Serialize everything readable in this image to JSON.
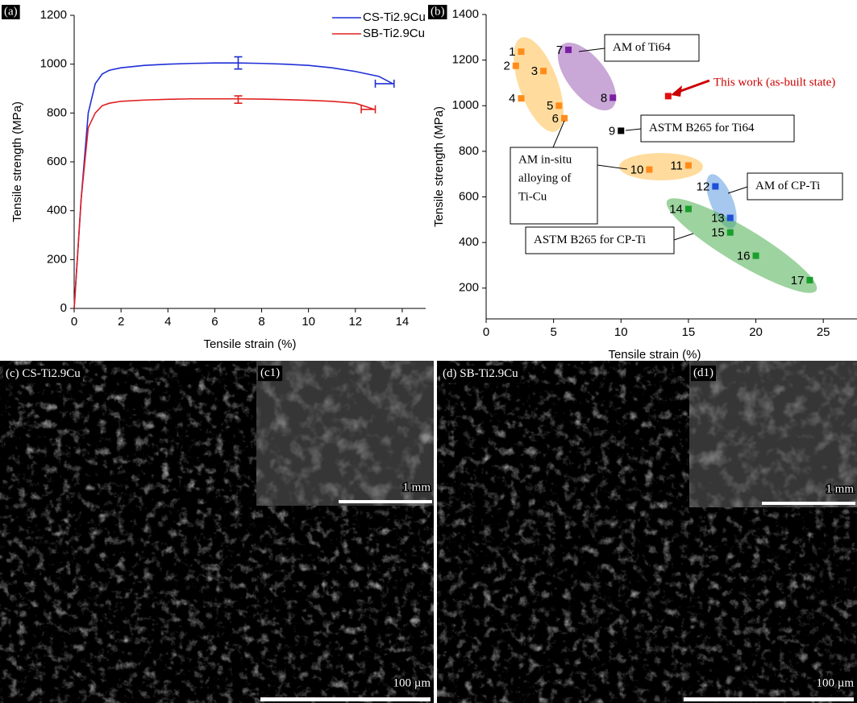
{
  "chart_data": [
    {
      "type": "line",
      "panel_label": "(a)",
      "x_label": "Tensile strain (%)",
      "y_label": "Tensile strength (MPa)",
      "xlim": [
        0,
        15
      ],
      "xticks": [
        0,
        2,
        4,
        6,
        8,
        10,
        12,
        14
      ],
      "ylim": [
        0,
        1200
      ],
      "yticks": [
        0,
        200,
        400,
        600,
        800,
        1000,
        1200
      ],
      "legend": "top-right",
      "series": [
        {
          "name": "CS-Ti2.9Cu",
          "color": "#1f2fd6",
          "x": [
            0,
            0.3,
            0.6,
            0.9,
            1.2,
            1.5,
            2,
            3,
            4,
            5,
            6,
            7,
            8,
            9,
            10,
            11,
            12,
            13,
            13.6
          ],
          "values": [
            0,
            450,
            800,
            920,
            960,
            975,
            985,
            995,
            1000,
            1003,
            1005,
            1005,
            1003,
            1000,
            995,
            985,
            970,
            950,
            920
          ]
        },
        {
          "name": "SB-Ti2.9Cu",
          "color": "#e02020",
          "x": [
            0,
            0.3,
            0.6,
            0.9,
            1.2,
            1.5,
            2,
            3,
            4,
            5,
            6,
            7,
            8,
            9,
            10,
            11,
            12,
            12.8
          ],
          "values": [
            0,
            450,
            740,
            800,
            830,
            840,
            848,
            853,
            856,
            858,
            858,
            858,
            857,
            855,
            852,
            848,
            840,
            815
          ]
        }
      ],
      "error_bars": [
        {
          "series": 0,
          "x": 7,
          "y": 1005,
          "yerr": 25
        },
        {
          "series": 1,
          "x": 7,
          "y": 855,
          "yerr": 15
        },
        {
          "series": 0,
          "x": 13.25,
          "y": 920,
          "xerr": 0.4
        },
        {
          "series": 1,
          "x": 12.55,
          "y": 815,
          "xerr": 0.3
        }
      ]
    },
    {
      "type": "scatter",
      "panel_label": "(b)",
      "x_label": "Tensile strain (%)",
      "y_label": "Tensile strength (MPa)",
      "xlim": [
        0,
        27.5
      ],
      "xticks": [
        0,
        5,
        10,
        15,
        20,
        25
      ],
      "ylim": [
        65,
        1400
      ],
      "yticks": [
        200,
        400,
        600,
        800,
        1000,
        1200,
        1400
      ],
      "x": [
        2.6,
        2.2,
        4.25,
        2.6,
        5.4,
        5.8,
        6.1,
        9.4,
        10.0,
        12.1,
        15.0,
        17.0,
        18.1,
        15.0,
        18.1,
        20.0,
        24.0,
        13.5
      ],
      "values": [
        1237,
        1175,
        1152,
        1032,
        1000,
        945,
        1245,
        1035,
        890,
        720,
        738,
        646,
        508,
        547,
        444,
        342,
        235,
        1042
      ],
      "point_labels": [
        "1",
        "2",
        "3",
        "4",
        "5",
        "6",
        "7",
        "8",
        "9",
        "10",
        "11",
        "12",
        "13",
        "14",
        "15",
        "16",
        "17",
        null
      ],
      "colors": [
        "#ff8c1a",
        "#ff8c1a",
        "#ff8c1a",
        "#ff8c1a",
        "#ff8c1a",
        "#ff8c1a",
        "#7b1fa2",
        "#7b1fa2",
        "#000000",
        "#ff8c1a",
        "#ff8c1a",
        "#1f4fd8",
        "#1f4fd8",
        "#1a9e2c",
        "#1a9e2c",
        "#1a9e2c",
        "#1a9e2c",
        "#e01010"
      ],
      "annotations": [
        [
          "AM of Ti64"
        ],
        [
          "This work (as-built state)"
        ],
        [
          "ASTM B265 for Ti64"
        ],
        [
          "AM in-situ",
          "alloying of",
          "Ti-Cu"
        ],
        [
          "AM of CP-Ti"
        ],
        [
          "ASTM B265 for CP-Ti"
        ]
      ]
    }
  ],
  "panels": [
    {
      "label": "(c) CS-Ti2.9Cu",
      "inset_label": "(c1)",
      "inset_scale": "1 mm",
      "scale": "100 µm"
    },
    {
      "label": "(d) SB-Ti2.9Cu",
      "inset_label": "(d1)",
      "inset_scale": "1 mm",
      "scale": "100 µm"
    }
  ]
}
